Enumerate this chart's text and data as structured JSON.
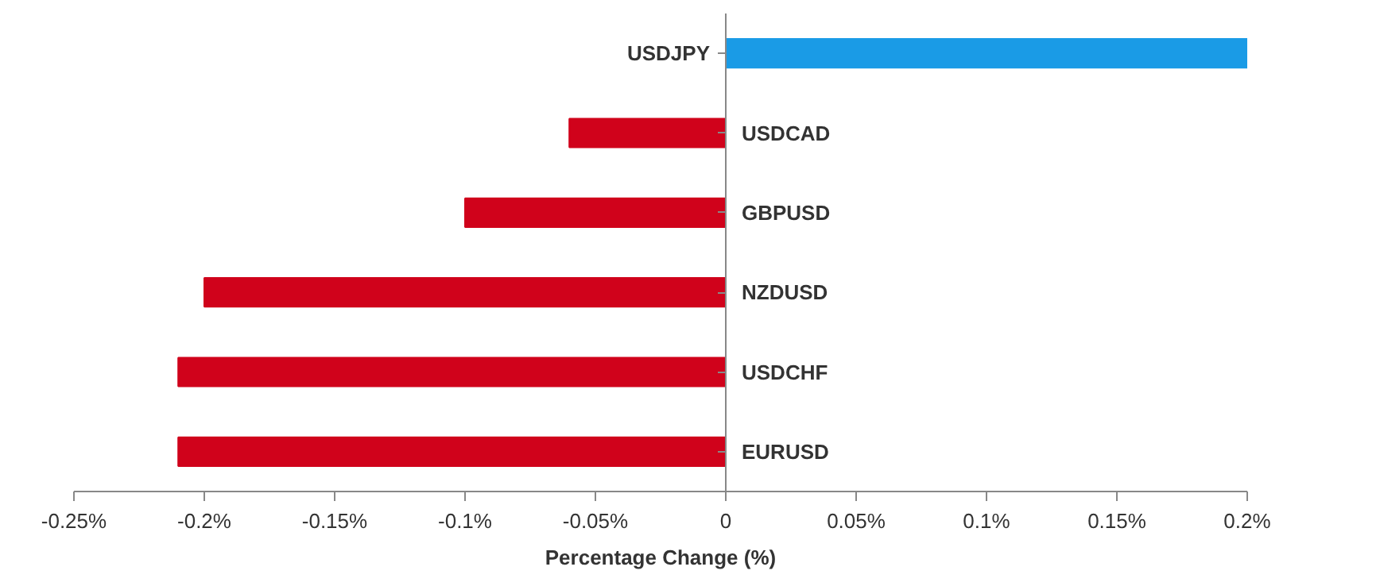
{
  "chart_data": {
    "type": "bar",
    "orientation": "horizontal",
    "xlabel": "Percentage Change (%)",
    "categories": [
      "USDJPY",
      "USDCAD",
      "GBPUSD",
      "NZDUSD",
      "USDCHF",
      "EURUSD"
    ],
    "values": [
      0.2,
      -0.06,
      -0.1,
      -0.2,
      -0.21,
      -0.21
    ],
    "colors": [
      "#1a9be6",
      "#d0021b",
      "#d0021b",
      "#d0021b",
      "#d0021b",
      "#d0021b"
    ],
    "xlim": [
      -0.25,
      0.2
    ],
    "xticks": [
      {
        "value": -0.25,
        "label": "-0.25%"
      },
      {
        "value": -0.2,
        "label": "-0.2%"
      },
      {
        "value": -0.15,
        "label": "-0.15%"
      },
      {
        "value": -0.1,
        "label": "-0.1%"
      },
      {
        "value": -0.05,
        "label": "-0.05%"
      },
      {
        "value": 0,
        "label": "0"
      },
      {
        "value": 0.05,
        "label": "0.05%"
      },
      {
        "value": 0.1,
        "label": "0.1%"
      },
      {
        "value": 0.15,
        "label": "0.15%"
      },
      {
        "value": 0.2,
        "label": "0.2%"
      }
    ],
    "grid": false
  }
}
